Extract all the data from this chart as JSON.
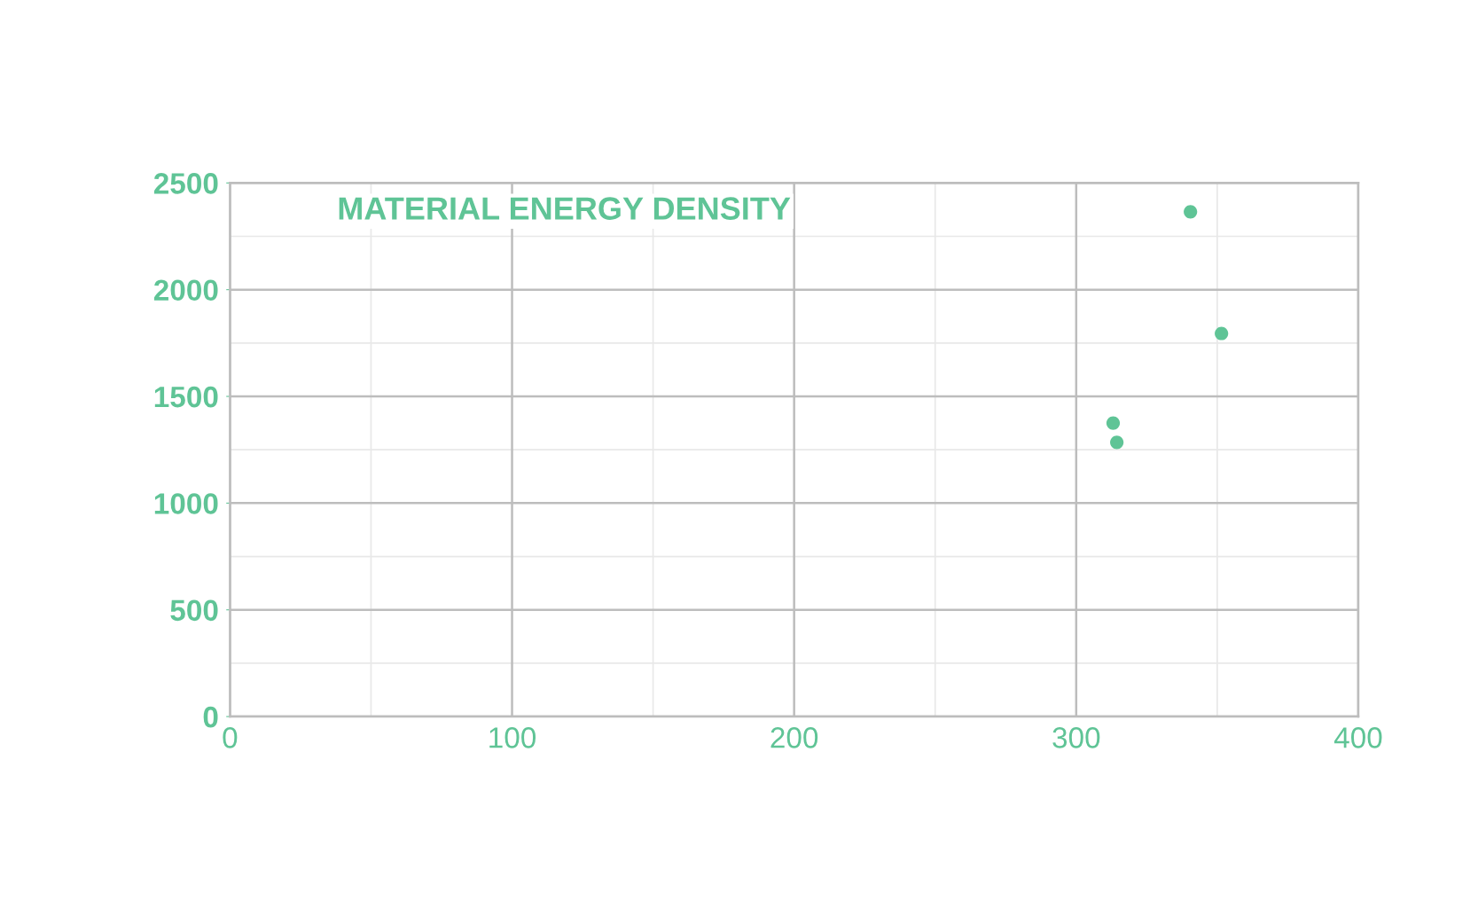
{
  "chart_data": {
    "type": "scatter",
    "title": "MATERIAL ENERGY DENSITY",
    "x": [
      340.5,
      351.5,
      313.1,
      314.4
    ],
    "series": [
      {
        "color": "#5fc496",
        "values": [
          2365,
          1795,
          1375,
          1285
        ]
      }
    ],
    "xlim": [
      0,
      400
    ],
    "xticks": [
      0,
      100,
      200,
      300,
      400
    ],
    "ylim": [
      0,
      2500
    ],
    "yticks": [
      0,
      500,
      1000,
      1500,
      2000,
      2500
    ],
    "grid": true,
    "marker": "circle"
  }
}
